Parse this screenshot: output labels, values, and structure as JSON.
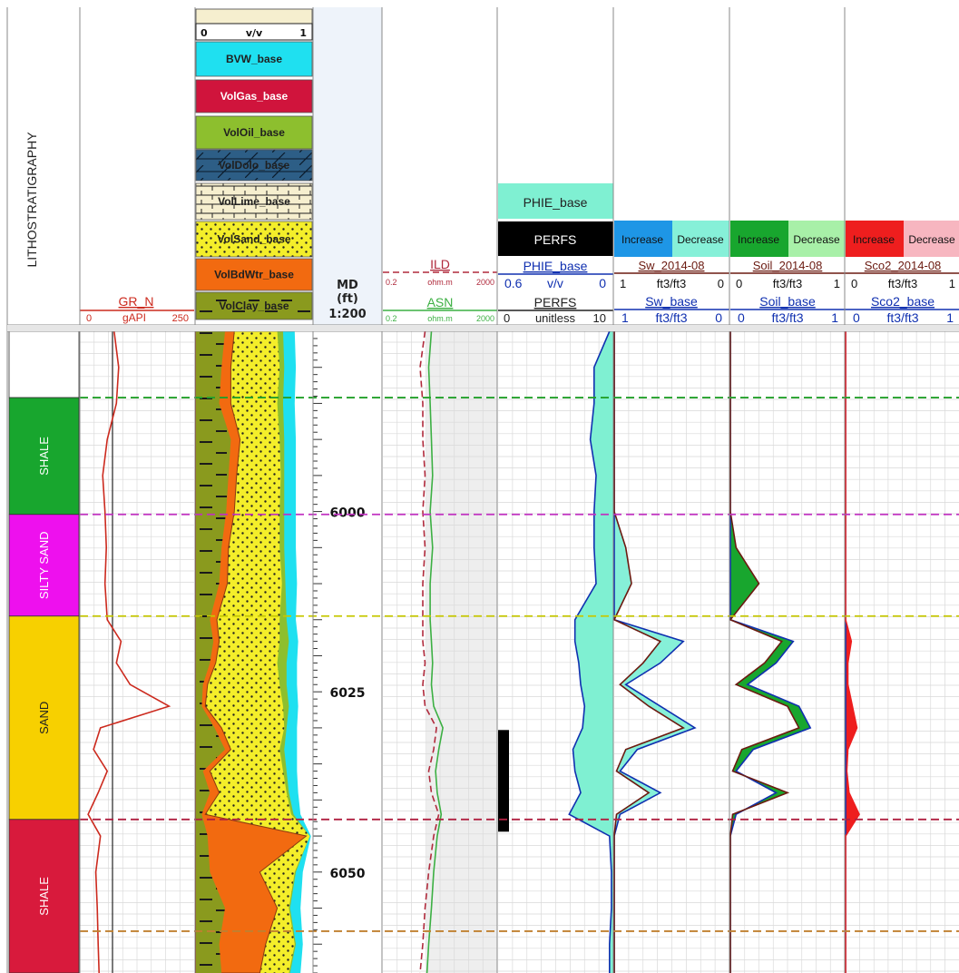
{
  "header": {
    "litho_title": "LITHOSTRATIGRAPHY",
    "gr": {
      "name": "GR_N",
      "min": "0",
      "unit": "gAPI",
      "max": "250",
      "color": "#cc2a1e"
    },
    "vol_scale": {
      "min": "0",
      "unit": "v/v",
      "max": "1"
    },
    "vol_legend": [
      {
        "label": "BVW_base",
        "color": "#1fe0f0",
        "text_color": "#202020"
      },
      {
        "label": "VolGas_base",
        "color": "#d0143c",
        "text_color": "#ffffff"
      },
      {
        "label": "VolOil_base",
        "color": "#8dbf2e",
        "text_color": "#202020"
      },
      {
        "label": "VolDolo_base",
        "color": "#2d5e86",
        "text_color": "#202020"
      },
      {
        "label": "VolLime_base",
        "color": "#f6efcf",
        "text_color": "#202020"
      },
      {
        "label": "VolSand_base",
        "color": "#f4ee2a",
        "text_color": "#202020"
      },
      {
        "label": "VolBdWtr_base",
        "color": "#f26a10",
        "text_color": "#202020"
      },
      {
        "label": "VolClay_base",
        "color": "#8a9a1e",
        "text_color": "#202020"
      }
    ],
    "depth": {
      "line1": "MD",
      "line2": "(ft)",
      "line3": "1:200"
    },
    "res": [
      {
        "name": "ILD",
        "min": "0.2",
        "unit": "ohm.m",
        "max": "2000",
        "color": "#b02a3c"
      },
      {
        "name": "ASN",
        "min": "0.2",
        "unit": "ohm.m",
        "max": "2000",
        "color": "#3cb043"
      }
    ],
    "phie_legend": {
      "label": "PHIE_base",
      "color": "#7ff0d2"
    },
    "perfs_legend": {
      "label": "PERFS",
      "color": "#000000"
    },
    "phie_curve": {
      "name": "PHIE_base",
      "min": "0.6",
      "unit": "v/v",
      "max": "0"
    },
    "perfs_curve": {
      "name": "PERFS",
      "min": "0",
      "unit": "unitless",
      "max": "10"
    },
    "sat_tracks": [
      {
        "inc": "Increase",
        "dec": "Decrease",
        "inc_color": "#1e96e6",
        "dec_color": "#86f0d8",
        "top_name": "Sw_2014-08",
        "top_min": "1",
        "top_unit": "ft3/ft3",
        "top_max": "0",
        "base_name": "Sw_base",
        "base_min": "1",
        "base_unit": "ft3/ft3",
        "base_max": "0"
      },
      {
        "inc": "Increase",
        "dec": "Decrease",
        "inc_color": "#18a62e",
        "dec_color": "#a8f0a8",
        "top_name": "Soil_2014-08",
        "top_min": "0",
        "top_unit": "ft3/ft3",
        "top_max": "1",
        "base_name": "Soil_base",
        "base_min": "0",
        "base_unit": "ft3/ft3",
        "base_max": "1"
      },
      {
        "inc": "Increase",
        "dec": "Decrease",
        "inc_color": "#ee1e1e",
        "dec_color": "#f7b6c0",
        "top_name": "Sco2_2014-08",
        "top_min": "0",
        "top_unit": "ft3/ft3",
        "top_max": "1",
        "base_name": "Sco2_base",
        "base_min": "0",
        "base_unit": "ft3/ft3",
        "base_max": "1"
      }
    ]
  },
  "chart_data": {
    "type": "line",
    "depth_axis": {
      "label": "MD (ft)",
      "ticks": [
        6000,
        6025,
        6050
      ],
      "range": [
        5975,
        6064
      ]
    },
    "zones": [
      {
        "name": "",
        "top": 5975,
        "base": 5984.2,
        "color": "#ffffff"
      },
      {
        "name": "SHALE",
        "top": 5984.2,
        "base": 6000.4,
        "color": "#18a62e"
      },
      {
        "name": "SILTY SAND",
        "top": 6000.4,
        "base": 6014.5,
        "color": "#ee10ee"
      },
      {
        "name": "SAND",
        "top": 6014.5,
        "base": 6042.7,
        "color": "#f7d000"
      },
      {
        "name": "SHALE",
        "top": 6042.7,
        "base": 6064,
        "color": "#d81a3c"
      }
    ],
    "tops": [
      {
        "depth": 5984.2,
        "color": "#22a02a"
      },
      {
        "depth": 6000.4,
        "color": "#c030c0"
      },
      {
        "depth": 6014.5,
        "color": "#c6c800"
      },
      {
        "depth": 6042.7,
        "color": "#b02040"
      },
      {
        "depth": 6058.2,
        "color": "#c08030"
      }
    ],
    "perfs_interval": {
      "top": 6030.3,
      "base": 6044.4,
      "value": 10
    },
    "depths": [
      5975,
      5980,
      5985,
      5990,
      5995,
      6000,
      6005,
      6010,
      6015,
      6018,
      6021,
      6024,
      6027,
      6030,
      6033,
      6036,
      6039,
      6042,
      6045,
      6050,
      6055,
      6060,
      6064
    ],
    "series": [
      {
        "name": "GR_N",
        "scale": [
          0,
          250
        ],
        "color": "#cc2a1e",
        "values": [
          75,
          85,
          80,
          60,
          50,
          55,
          58,
          55,
          60,
          90,
          80,
          110,
          195,
          45,
          30,
          60,
          40,
          18,
          45,
          35,
          38,
          40,
          42
        ]
      },
      {
        "name": "ILD",
        "scale": [
          0.2,
          2000
        ],
        "log": true,
        "color": "#b02a3c",
        "values": [
          6,
          4,
          5,
          5,
          6,
          5,
          6,
          5,
          5,
          5,
          6,
          5,
          6,
          15,
          12,
          8,
          10,
          18,
          12,
          8,
          6,
          5,
          4
        ]
      },
      {
        "name": "ASN",
        "scale": [
          0.2,
          2000
        ],
        "log": true,
        "color": "#3cb043",
        "values": [
          10,
          8,
          9,
          10,
          11,
          9,
          11,
          9,
          9,
          10,
          11,
          10,
          12,
          25,
          18,
          14,
          16,
          22,
          16,
          12,
          10,
          8,
          7
        ]
      },
      {
        "name": "PHIE_base",
        "scale": [
          0.6,
          0
        ],
        "color": "#1030b0",
        "values": [
          0.02,
          0.1,
          0.1,
          0.12,
          0.09,
          0.1,
          0.1,
          0.09,
          0.2,
          0.2,
          0.18,
          0.17,
          0.15,
          0.16,
          0.21,
          0.2,
          0.17,
          0.23,
          0.02,
          0.01,
          0.01,
          0.02,
          0.02
        ]
      },
      {
        "name": "Sw_base",
        "scale": [
          1,
          0
        ],
        "color": "#1030b0",
        "values": [
          1,
          1,
          1,
          1,
          1,
          1,
          1,
          1,
          1,
          0.4,
          0.6,
          0.9,
          0.6,
          0.3,
          0.8,
          0.95,
          0.6,
          0.95,
          1,
          1,
          1,
          1,
          1
        ]
      },
      {
        "name": "Sw_2014-08",
        "scale": [
          1,
          0
        ],
        "color": "#6b1a10",
        "values": [
          1,
          1,
          1,
          1,
          1,
          1,
          0.9,
          0.85,
          1,
          0.6,
          0.75,
          0.95,
          0.7,
          0.4,
          0.9,
          0.98,
          0.7,
          0.98,
          1,
          1,
          1,
          1,
          1
        ]
      },
      {
        "name": "Soil_base",
        "scale": [
          0,
          1
        ],
        "color": "#1030b0",
        "values": [
          0,
          0,
          0,
          0,
          0,
          0,
          0,
          0,
          0,
          0.55,
          0.4,
          0.15,
          0.6,
          0.7,
          0.2,
          0.05,
          0.4,
          0.05,
          0,
          0,
          0,
          0,
          0
        ]
      },
      {
        "name": "Soil_2014-08",
        "scale": [
          0,
          1
        ],
        "color": "#6b1a10",
        "values": [
          0,
          0,
          0,
          0,
          0,
          0,
          0.05,
          0.25,
          0,
          0.45,
          0.3,
          0.05,
          0.5,
          0.6,
          0.1,
          0.02,
          0.5,
          0.02,
          0,
          0,
          0,
          0,
          0
        ]
      },
      {
        "name": "Sco2_base",
        "scale": [
          0,
          1
        ],
        "color": "#1030b0",
        "values": [
          0,
          0,
          0,
          0,
          0,
          0,
          0,
          0,
          0,
          0,
          0,
          0,
          0,
          0,
          0,
          0,
          0,
          0,
          0,
          0,
          0,
          0,
          0
        ]
      },
      {
        "name": "Sco2_2014-08",
        "scale": [
          0,
          1
        ],
        "color": "#ee1e1e",
        "values": [
          0,
          0,
          0,
          0,
          0,
          0,
          0,
          0,
          0,
          0.05,
          0.02,
          0.02,
          0.06,
          0.1,
          0.02,
          0.01,
          0.03,
          0.12,
          0,
          0,
          0,
          0,
          0
        ]
      }
    ],
    "volumetrics": {
      "order": [
        "VolClay_base",
        "VolBdWtr_base",
        "VolSand_base",
        "VolOil_base",
        "BVW_base"
      ],
      "cumulative": [
        [
          0.25,
          0.33,
          0.7,
          0.75,
          0.85
        ],
        [
          0.22,
          0.3,
          0.72,
          0.76,
          0.86
        ],
        [
          0.2,
          0.3,
          0.7,
          0.75,
          0.85
        ],
        [
          0.3,
          0.38,
          0.72,
          0.76,
          0.86
        ],
        [
          0.28,
          0.35,
          0.73,
          0.76,
          0.86
        ],
        [
          0.26,
          0.33,
          0.72,
          0.76,
          0.86
        ],
        [
          0.22,
          0.28,
          0.72,
          0.76,
          0.86
        ],
        [
          0.2,
          0.27,
          0.74,
          0.77,
          0.87
        ],
        [
          0.12,
          0.18,
          0.72,
          0.78,
          0.86
        ],
        [
          0.15,
          0.2,
          0.72,
          0.8,
          0.88
        ],
        [
          0.12,
          0.17,
          0.7,
          0.78,
          0.87
        ],
        [
          0.06,
          0.1,
          0.72,
          0.78,
          0.87
        ],
        [
          0.05,
          0.08,
          0.75,
          0.8,
          0.88
        ],
        [
          0.16,
          0.22,
          0.76,
          0.78,
          0.87
        ],
        [
          0.25,
          0.3,
          0.72,
          0.76,
          0.87
        ],
        [
          0.06,
          0.12,
          0.75,
          0.78,
          0.87
        ],
        [
          0.12,
          0.2,
          0.78,
          0.8,
          0.88
        ],
        [
          0.05,
          0.08,
          0.82,
          0.84,
          0.9
        ],
        [
          0.1,
          0.95,
          0.98,
          0.98,
          0.99
        ],
        [
          0.12,
          0.55,
          0.85,
          0.86,
          0.92
        ],
        [
          0.25,
          0.7,
          0.8,
          0.81,
          0.9
        ],
        [
          0.2,
          0.6,
          0.85,
          0.86,
          0.92
        ],
        [
          0.22,
          0.55,
          0.8,
          0.81,
          0.9
        ]
      ]
    }
  }
}
